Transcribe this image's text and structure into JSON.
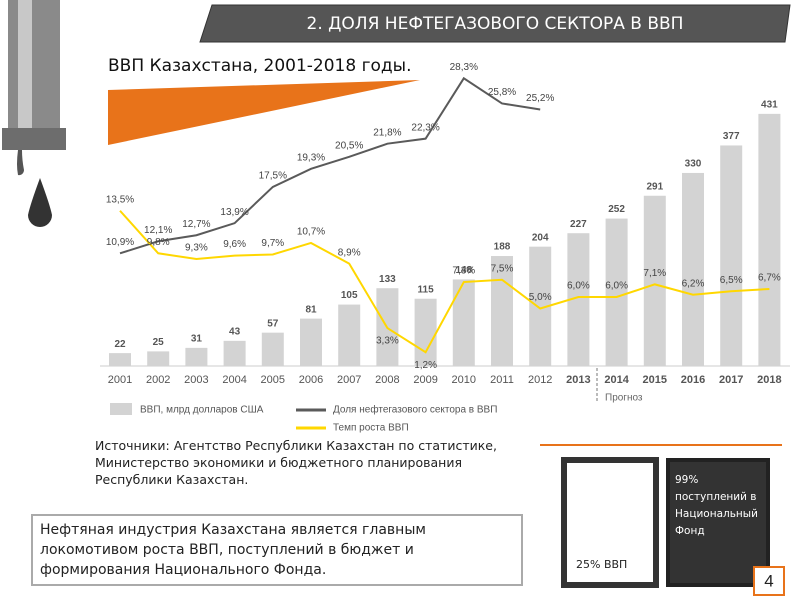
{
  "slide": {
    "title": "2. ДОЛЯ НЕФТЕГАЗОВОГО СЕКТОРА В ВВП",
    "sources": "Источники: Агентство Республики Казахстан по статистике, Министерство экономики и бюджетного планирования Республики Казахстан.",
    "summary": "Нефтяная индустрия Казахстана является главным локомотивом роста ВВП, поступлений в бюджет и формирования Национального Фонда.",
    "box_left": "25% ВВП",
    "box_right": "99% поступлений в Национальный Фонд",
    "page_number": "4"
  },
  "chart_data": {
    "type": "bar_line",
    "title": "ВВП Казахстана, 2001-2018 годы.",
    "categories": [
      "2001",
      "2002",
      "2003",
      "2004",
      "2005",
      "2006",
      "2007",
      "2008",
      "2009",
      "2010",
      "2011",
      "2012",
      "2013",
      "2014",
      "2015",
      "2016",
      "2017",
      "2018"
    ],
    "annotation": "Прогноз",
    "series": [
      {
        "name": "ВВП, млрд долларов США",
        "color": "#d3d3d3",
        "type": "bar",
        "values": [
          22,
          25,
          31,
          43,
          57,
          81,
          105,
          133,
          115,
          148,
          188,
          204,
          227,
          252,
          291,
          330,
          377,
          431
        ]
      },
      {
        "name": "Доля нефтегазового сектора в ВВП",
        "color": "#5a5a5a",
        "type": "line",
        "values": [
          10.9,
          12.1,
          12.7,
          13.9,
          17.5,
          19.3,
          20.5,
          21.8,
          22.3,
          28.3,
          25.8,
          25.2,
          null,
          null,
          null,
          null,
          null,
          null
        ],
        "value_labels": [
          "10,9%",
          "12,1%",
          "12,7%",
          "13,9%",
          "17,5%",
          "19,3%",
          "20,5%",
          "21,8%",
          "22,3%",
          "28,3%",
          "25,8%",
          "25,2%",
          null,
          null,
          null,
          null,
          null,
          null
        ]
      },
      {
        "name": "Темп роста ВВП",
        "color": "#ffd700",
        "type": "line",
        "values": [
          13.5,
          9.8,
          9.3,
          9.6,
          9.7,
          10.7,
          8.9,
          3.3,
          1.2,
          7.3,
          7.5,
          5.0,
          6.0,
          6.0,
          7.1,
          6.2,
          6.5,
          6.7
        ],
        "value_labels": [
          "13,5%",
          "9,8%",
          "9,3%",
          "9,6%",
          "9,7%",
          "10,7%",
          "8,9%",
          "3,3%",
          "1,2%",
          "7,3%",
          "7,5%",
          "5,0%",
          "6,0%",
          "6,0%",
          "7,1%",
          "6,2%",
          "6,5%",
          "6,7%"
        ]
      }
    ]
  }
}
